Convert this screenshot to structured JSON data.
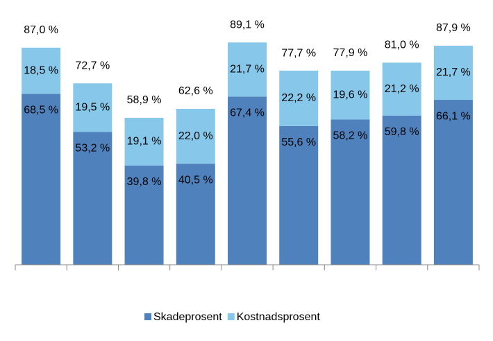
{
  "chart_data": {
    "type": "stacked_bar",
    "categories": [
      null,
      null,
      null,
      null,
      null,
      null,
      null,
      null,
      null
    ],
    "series": [
      {
        "name": "Skadeprosent",
        "color": "#4f81bd",
        "values": [
          68.5,
          53.2,
          39.8,
          40.5,
          67.4,
          55.6,
          58.2,
          59.8,
          66.1
        ],
        "value_labels": [
          "68,5 %",
          "53,2 %",
          "39,8 %",
          "40,5 %",
          "67,4 %",
          "55,6 %",
          "58,2 %",
          "59,8 %",
          "66,1 %"
        ]
      },
      {
        "name": "Kostnadsprosent",
        "color": "#87c7ea",
        "values": [
          18.5,
          19.5,
          19.1,
          22.0,
          21.7,
          22.2,
          19.6,
          21.2,
          21.7
        ],
        "value_labels": [
          "18,5 %",
          "19,5 %",
          "19,1 %",
          "22,0 %",
          "21,7 %",
          "22,2 %",
          "19,6 %",
          "21,2 %",
          "21,7 %"
        ]
      }
    ],
    "totals": [
      87.0,
      72.7,
      58.9,
      62.6,
      89.1,
      77.7,
      77.9,
      81.0,
      87.9
    ],
    "total_labels": [
      "87,0 %",
      "72,7 %",
      "58,9 %",
      "62,6 %",
      "89,1 %",
      "77,7 %",
      "77,9 %",
      "81,0 %",
      "87,9 %"
    ],
    "ylim": [
      0,
      100
    ],
    "legend": "bottom"
  }
}
